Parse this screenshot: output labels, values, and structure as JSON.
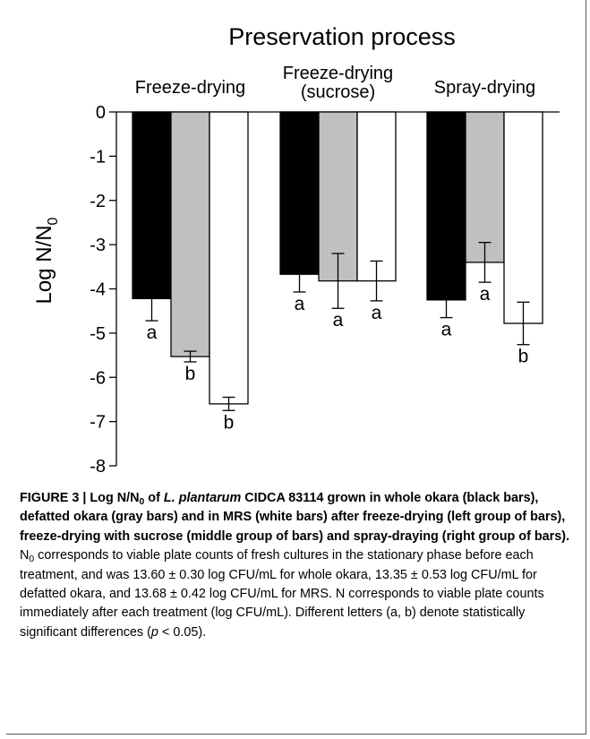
{
  "chart_data": {
    "type": "bar",
    "title": "Preservation process",
    "ylabel": "Log N/N",
    "ylabel_sub": "0",
    "ylim": [
      -8,
      0
    ],
    "yticks": [
      "0",
      "-1",
      "-2",
      "-3",
      "-4",
      "-5",
      "-6",
      "-7",
      "-8"
    ],
    "grid": false,
    "colors": [
      "#000000",
      "#c0c0c0",
      "#ffffff"
    ],
    "groups": [
      {
        "label_lines": [
          "Freeze-drying"
        ]
      },
      {
        "label_lines": [
          "Freeze-drying",
          "(sucrose)"
        ]
      },
      {
        "label_lines": [
          "Spray-drying"
        ]
      }
    ],
    "bars": [
      [
        {
          "value": -4.22,
          "err": 0.5,
          "letter": "a"
        },
        {
          "value": -5.53,
          "err": 0.12,
          "letter": "b"
        },
        {
          "value": -6.6,
          "err": 0.15,
          "letter": "b"
        }
      ],
      [
        {
          "value": -3.67,
          "err": 0.4,
          "letter": "a"
        },
        {
          "value": -3.82,
          "err": 0.62,
          "letter": "a"
        },
        {
          "value": -3.82,
          "err": 0.45,
          "letter": "a"
        }
      ],
      [
        {
          "value": -4.25,
          "err": 0.4,
          "letter": "a"
        },
        {
          "value": -3.4,
          "err": 0.45,
          "letter": "a"
        },
        {
          "value": -4.78,
          "err": 0.48,
          "letter": "b"
        }
      ]
    ]
  },
  "caption": {
    "bold_1": "FIGURE 3 | Log N/N",
    "bold_sub": "0",
    "bold_2": " of ",
    "bold_italic": "L. plantarum",
    "bold_3": " CIDCA 83114 grown in whole okara (black bars), defatted okara (gray bars) and in MRS (white bars) after freeze-drying (left group of bars), freeze-drying with sucrose (middle group of bars) and spray-draying (right group of bars).",
    "text_n": " N",
    "text_sub": "0",
    "text_1": " corresponds to viable plate counts of fresh cultures in the stationary phase before each treatment, and was 13.60 ± 0.30 log CFU/mL for whole okara, 13.35 ± 0.53 log CFU/mL for defatted okara, and 13.68 ± 0.42 log CFU/mL for MRS. N corresponds to viable plate counts immediately after each treatment (log CFU/mL). Different letters (a, b) denote statistically significant differences (",
    "text_p": "p",
    "text_2": " < 0.05)."
  }
}
